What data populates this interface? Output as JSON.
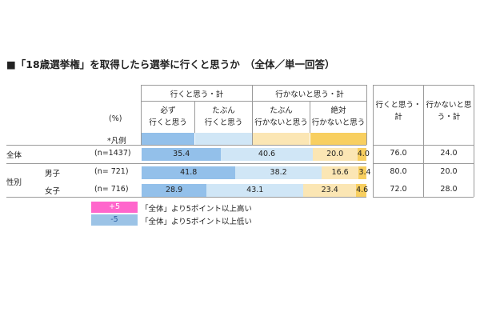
{
  "title": "■「18歳選挙権」を取得したら選挙に行くと思うか　（全体／単一回答）",
  "header": {
    "group_go": "行くと思う・計",
    "group_not": "行かないと思う・計",
    "sub": [
      {
        "line1": "必ず",
        "line2": "行くと思う"
      },
      {
        "line1": "たぶん",
        "line2": "行くと思う"
      },
      {
        "line1": "たぶん",
        "line2": "行かないと思う"
      },
      {
        "line1": "絶対",
        "line2": "行かないと思う"
      }
    ],
    "pct_unit": "(%)",
    "legend_ref": "*凡例",
    "total_go_line1": "行くと思う・",
    "total_go_line2": "計",
    "total_not_line1": "行かないと思",
    "total_not_line2": "う・計"
  },
  "rows": [
    {
      "group": "全体",
      "label": "",
      "n": "(n=1437)"
    },
    {
      "group": "性別",
      "label": "男子",
      "n": "(n=  721)"
    },
    {
      "group": "",
      "label": "女子",
      "n": "(n=  716)"
    }
  ],
  "chart_data": {
    "type": "bar",
    "stacked": true,
    "orientation": "horizontal",
    "categories": [
      "全体",
      "男子",
      "女子"
    ],
    "series": [
      {
        "name": "必ず行くと思う",
        "values": [
          35.4,
          41.8,
          28.9
        ],
        "color": "#93c0ea"
      },
      {
        "name": "たぶん行くと思う",
        "values": [
          40.6,
          38.2,
          43.1
        ],
        "color": "#d0e6f6"
      },
      {
        "name": "たぶん行かないと思う",
        "values": [
          20.0,
          16.6,
          23.4
        ],
        "color": "#fbe6b4"
      },
      {
        "name": "絶対行かないと思う",
        "values": [
          4.0,
          3.4,
          4.6
        ],
        "color": "#f8cf60"
      }
    ],
    "totals": {
      "go": [
        "76.0",
        "80.0",
        "72.0"
      ],
      "not_go": [
        "24.0",
        "20.0",
        "28.0"
      ]
    },
    "value_labels": [
      [
        "35.4",
        "40.6",
        "20.0",
        "4.0"
      ],
      [
        "41.8",
        "38.2",
        "16.6",
        "3.4"
      ],
      [
        "28.9",
        "43.1",
        "23.4",
        "4.6"
      ]
    ],
    "xlim": [
      0,
      100
    ]
  },
  "legend": {
    "high_badge": "+5",
    "high_text": "「全体」より5ポイント以上高い",
    "high_color": "#ff66cc",
    "low_badge": "-5",
    "low_text": "「全体」より5ポイント以上低い",
    "low_color": "#9cc3e6"
  }
}
